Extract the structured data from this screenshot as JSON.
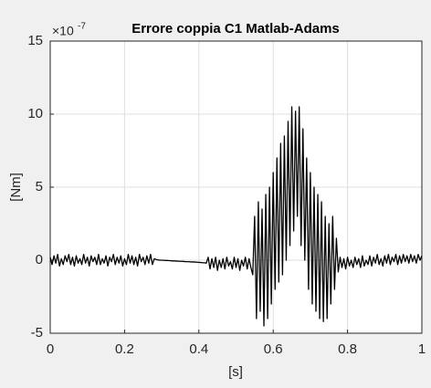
{
  "chart_data": {
    "type": "line",
    "title": "Errore coppia C1 Matlab-Adams",
    "xlabel": "[s]",
    "ylabel": "[Nm]",
    "y_multiplier": {
      "base": "×10",
      "power": "-7"
    },
    "xlim": [
      0,
      1
    ],
    "xticks": [
      0,
      0.2,
      0.4,
      0.6,
      0.8,
      1
    ],
    "ylim": [
      -5,
      15
    ],
    "yticks": [
      -5,
      0,
      5,
      10,
      15
    ],
    "grid": true,
    "x": [
      0,
      0.005,
      0.01,
      0.015,
      0.02,
      0.025,
      0.03,
      0.035,
      0.04,
      0.045,
      0.05,
      0.055,
      0.06,
      0.065,
      0.07,
      0.075,
      0.08,
      0.085,
      0.09,
      0.095,
      0.1,
      0.105,
      0.11,
      0.115,
      0.12,
      0.125,
      0.13,
      0.135,
      0.14,
      0.145,
      0.15,
      0.155,
      0.16,
      0.165,
      0.17,
      0.175,
      0.18,
      0.185,
      0.19,
      0.195,
      0.2,
      0.205,
      0.21,
      0.215,
      0.22,
      0.225,
      0.23,
      0.235,
      0.24,
      0.245,
      0.25,
      0.255,
      0.26,
      0.265,
      0.27,
      0.275,
      0.28,
      0.285,
      0.29,
      0.295,
      0.3,
      0.305,
      0.31,
      0.315,
      0.32,
      0.325,
      0.33,
      0.335,
      0.34,
      0.345,
      0.35,
      0.355,
      0.36,
      0.365,
      0.37,
      0.375,
      0.38,
      0.385,
      0.39,
      0.395,
      0.4,
      0.405,
      0.41,
      0.415,
      0.42,
      0.425,
      0.43,
      0.435,
      0.44,
      0.445,
      0.45,
      0.455,
      0.46,
      0.465,
      0.47,
      0.475,
      0.48,
      0.485,
      0.49,
      0.495,
      0.5,
      0.505,
      0.51,
      0.515,
      0.52,
      0.525,
      0.53,
      0.535,
      0.54,
      0.545,
      0.55,
      0.555,
      0.56,
      0.565,
      0.57,
      0.575,
      0.58,
      0.585,
      0.59,
      0.595,
      0.6,
      0.605,
      0.61,
      0.615,
      0.62,
      0.625,
      0.63,
      0.635,
      0.64,
      0.645,
      0.65,
      0.655,
      0.66,
      0.665,
      0.67,
      0.675,
      0.68,
      0.685,
      0.69,
      0.695,
      0.7,
      0.705,
      0.71,
      0.715,
      0.72,
      0.725,
      0.73,
      0.735,
      0.74,
      0.745,
      0.75,
      0.755,
      0.76,
      0.765,
      0.77,
      0.775,
      0.78,
      0.785,
      0.79,
      0.795,
      0.8,
      0.805,
      0.81,
      0.815,
      0.82,
      0.825,
      0.83,
      0.835,
      0.84,
      0.845,
      0.85,
      0.855,
      0.86,
      0.865,
      0.87,
      0.875,
      0.88,
      0.885,
      0.89,
      0.895,
      0.9,
      0.905,
      0.91,
      0.915,
      0.92,
      0.925,
      0.93,
      0.935,
      0.94,
      0.945,
      0.95,
      0.955,
      0.96,
      0.965,
      0.97,
      0.975,
      0.98,
      0.985,
      0.99,
      0.995,
      1
    ],
    "series": [
      {
        "color": "#000000",
        "values": [
          0.2,
          -0.3,
          0.3,
          -0.2,
          0.4,
          -0.4,
          0.1,
          -0.3,
          0.3,
          -0.1,
          0.4,
          -0.3,
          0.2,
          -0.4,
          0.3,
          -0.2,
          0.1,
          -0.3,
          0.4,
          -0.2,
          0.2,
          -0.4,
          0.3,
          -0.1,
          0.2,
          -0.3,
          0.4,
          -0.3,
          0.1,
          -0.2,
          0.3,
          -0.4,
          0.2,
          -0.1,
          0.4,
          -0.3,
          0.2,
          -0.2,
          0.3,
          -0.4,
          0.1,
          -0.3,
          0.4,
          -0.2,
          0.3,
          -0.3,
          0.2,
          -0.4,
          0.4,
          -0.1,
          0.2,
          -0.3,
          0.3,
          -0.2,
          0.4,
          -0.3,
          0.1,
          0.05,
          0.02,
          0.0,
          0.0,
          -0.01,
          -0.02,
          -0.02,
          -0.03,
          -0.04,
          -0.05,
          -0.05,
          -0.06,
          -0.07,
          -0.08,
          -0.08,
          -0.09,
          -0.1,
          -0.1,
          -0.11,
          -0.12,
          -0.12,
          -0.13,
          -0.14,
          -0.15,
          -0.16,
          -0.17,
          -0.18,
          -0.2,
          0.2,
          -0.6,
          0.1,
          -0.5,
          0.2,
          -0.7,
          0.0,
          -0.5,
          0.1,
          -0.6,
          0.2,
          -0.4,
          -0.1,
          -0.6,
          0.2,
          -0.5,
          0.1,
          -0.7,
          0.0,
          -0.4,
          0.2,
          -0.6,
          0.1,
          -0.5,
          -1,
          3,
          -4,
          4,
          -3.5,
          3.5,
          -4.5,
          4.5,
          -4,
          5,
          -3,
          6,
          -2,
          7,
          -1.5,
          8,
          -1,
          8.5,
          0,
          9.5,
          1,
          10.5,
          2,
          10.2,
          3,
          10.5,
          1,
          9,
          0,
          7,
          -2,
          6,
          -3,
          5,
          -3.5,
          4.5,
          -4,
          4,
          -4.2,
          3,
          -4,
          2.5,
          -3,
          3,
          -2,
          1.5,
          -0.8,
          0.2,
          -0.5,
          0.1,
          -0.6,
          0.2,
          -0.4,
          0.0,
          -0.5,
          0.2,
          -0.3,
          0.1,
          -0.5,
          0.3,
          -0.4,
          0.0,
          -0.3,
          0.3,
          -0.4,
          0.2,
          -0.2,
          0.4,
          -0.3,
          0.1,
          -0.4,
          0.3,
          -0.2,
          0.4,
          -0.3,
          0.2,
          -0.1,
          0.4,
          -0.3,
          0.3,
          -0.2,
          0.4,
          -0.1,
          0.3,
          -0.2,
          0.4,
          -0.1,
          0.3,
          -0.2,
          0.4,
          0.0,
          0.3
        ]
      }
    ]
  }
}
